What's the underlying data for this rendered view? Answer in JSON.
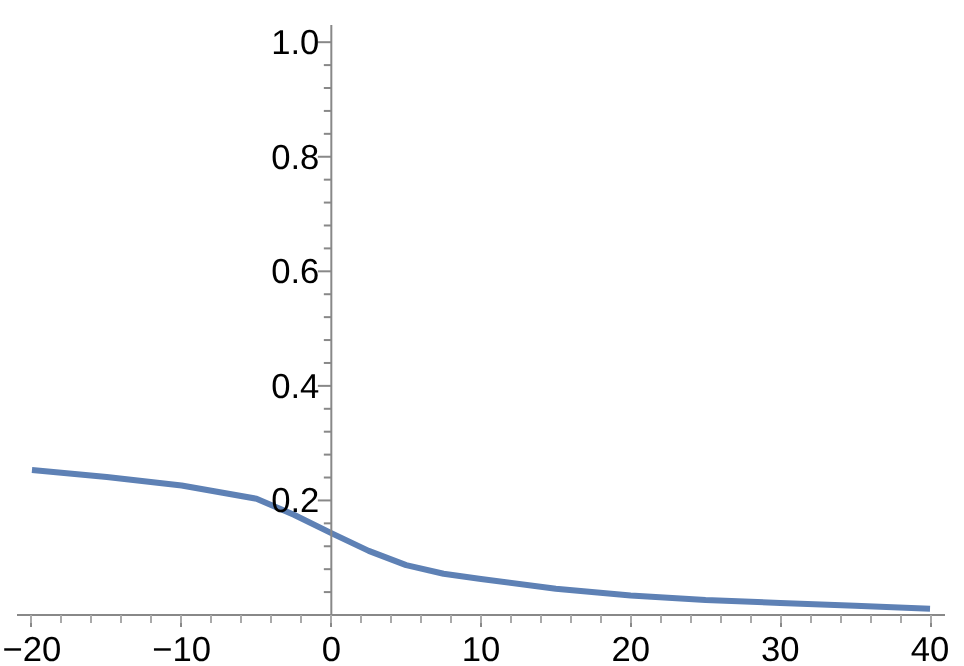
{
  "chart_data": {
    "type": "line",
    "x": [
      -20,
      -15,
      -10,
      -5,
      -2.5,
      0,
      2.5,
      5,
      7.5,
      10,
      15,
      20,
      25,
      30,
      35,
      40
    ],
    "series": [
      {
        "color": "#5e81b5",
        "values": [
          0.253,
          0.241,
          0.226,
          0.203,
          0.175,
          0.143,
          0.112,
          0.087,
          0.072,
          0.063,
          0.046,
          0.034,
          0.026,
          0.021,
          0.016,
          0.011
        ]
      }
    ],
    "xlim": [
      -21,
      41
    ],
    "ylim": [
      0,
      1.03
    ],
    "xticks": [
      {
        "value": -20,
        "label": "−20"
      },
      {
        "value": -10,
        "label": "−10"
      },
      0,
      10,
      20,
      30,
      40
    ],
    "yticks": [
      0.2,
      0.4,
      0.6,
      0.8,
      {
        "value": 1,
        "label": "1.0"
      }
    ],
    "grid": false
  }
}
